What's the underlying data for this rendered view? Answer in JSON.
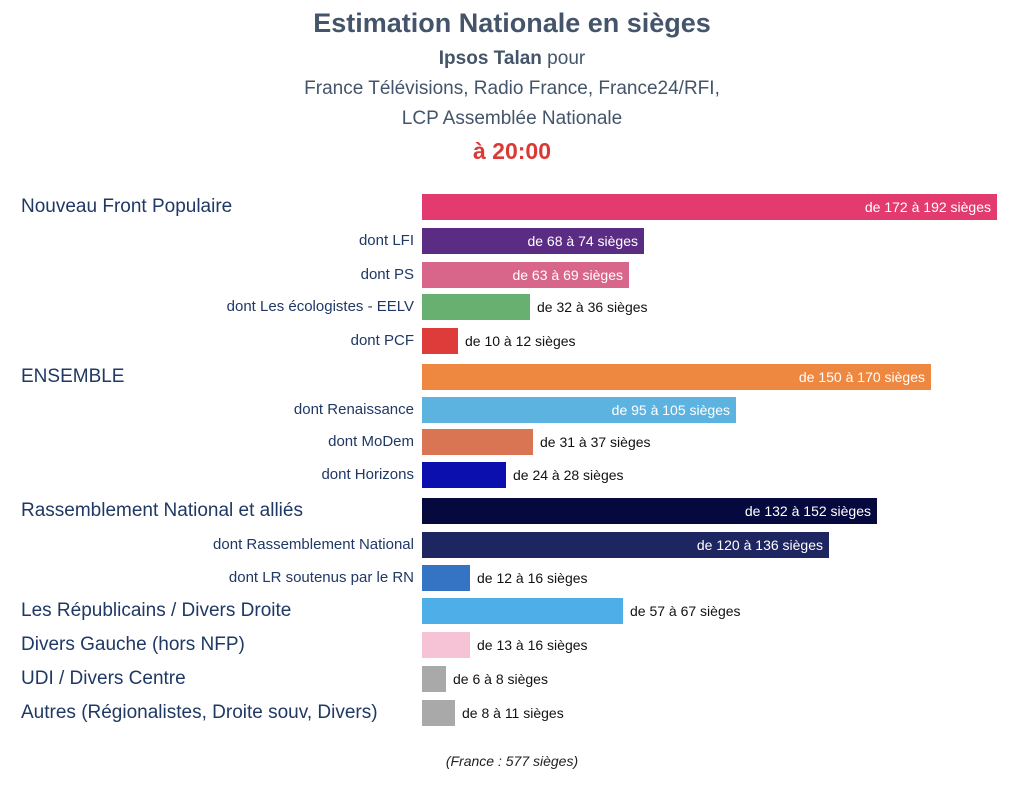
{
  "header": {
    "title": "Estimation Nationale en sièges",
    "pollster": "Ipsos Talan",
    "pour": " pour",
    "clients_line1": "France Télévisions, Radio France, France24/RFI,",
    "clients_line2": "LCP Assemblée Nationale",
    "time": "à 20:00"
  },
  "footer": "(France : 577 sièges)",
  "chart_data": {
    "type": "bar",
    "orientation": "horizontal",
    "title": "Estimation Nationale en sièges",
    "total_seats": 577,
    "rows": [
      {
        "label": "Nouveau Front Populaire",
        "level": "main",
        "min": 172,
        "max": 192,
        "text": "de 172 à 192 sièges",
        "color": "#e33a6f",
        "inside": true
      },
      {
        "label": "dont LFI",
        "level": "sub",
        "min": 68,
        "max": 74,
        "text": "de 68 à 74 sièges",
        "color": "#5b2c83",
        "inside": true
      },
      {
        "label": "dont PS",
        "level": "sub",
        "min": 63,
        "max": 69,
        "text": "de 63 à 69 sièges",
        "color": "#d8668a",
        "inside": true
      },
      {
        "label": "dont Les écologistes - EELV",
        "level": "sub",
        "min": 32,
        "max": 36,
        "text": "de 32 à 36 sièges",
        "color": "#68b06f",
        "inside": false
      },
      {
        "label": "dont PCF",
        "level": "sub",
        "min": 10,
        "max": 12,
        "text": "de 10 à 12 sièges",
        "color": "#dd3c3a",
        "inside": false
      },
      {
        "label": "ENSEMBLE",
        "level": "main",
        "min": 150,
        "max": 170,
        "text": "de 150 à 170 sièges",
        "color": "#ee8740",
        "inside": true
      },
      {
        "label": "dont Renaissance",
        "level": "sub",
        "min": 95,
        "max": 105,
        "text": "de 95 à 105 sièges",
        "color": "#5cb3e0",
        "inside": true
      },
      {
        "label": "dont MoDem",
        "level": "sub",
        "min": 31,
        "max": 37,
        "text": "de 31 à 37 sièges",
        "color": "#d97553",
        "inside": false
      },
      {
        "label": "dont Horizons",
        "level": "sub",
        "min": 24,
        "max": 28,
        "text": "de 24 à 28 sièges",
        "color": "#0a0fad",
        "inside": false
      },
      {
        "label": "Rassemblement National et alliés",
        "level": "main",
        "min": 132,
        "max": 152,
        "text": "de 132 à 152 sièges",
        "color": "#06093e",
        "inside": true
      },
      {
        "label": "dont Rassemblement National",
        "level": "sub",
        "min": 120,
        "max": 136,
        "text": "de 120 à 136 sièges",
        "color": "#1d2660",
        "inside": true
      },
      {
        "label": "dont LR soutenus par le RN",
        "level": "sub",
        "min": 12,
        "max": 16,
        "text": "de 12 à 16 sièges",
        "color": "#3574c4",
        "inside": false
      },
      {
        "label": "Les Républicains / Divers Droite",
        "level": "main",
        "min": 57,
        "max": 67,
        "text": "de 57 à 67 sièges",
        "color": "#4eaee8",
        "inside": false
      },
      {
        "label": "Divers Gauche (hors NFP)",
        "level": "main",
        "min": 13,
        "max": 16,
        "text": "de 13 à 16 sièges",
        "color": "#f6c3d6",
        "inside": false
      },
      {
        "label": "UDI / Divers Centre",
        "level": "main",
        "min": 6,
        "max": 8,
        "text": "de 6 à 8 sièges",
        "color": "#a9a9a9",
        "inside": false
      },
      {
        "label": "Autres (Régionalistes, Droite souv, Divers)",
        "level": "main",
        "min": 8,
        "max": 11,
        "text": "de 8 à 11 sièges",
        "color": "#a9a9a9",
        "inside": false
      }
    ],
    "xlim": [
      0,
      192
    ],
    "grid": false,
    "legend": "none"
  }
}
